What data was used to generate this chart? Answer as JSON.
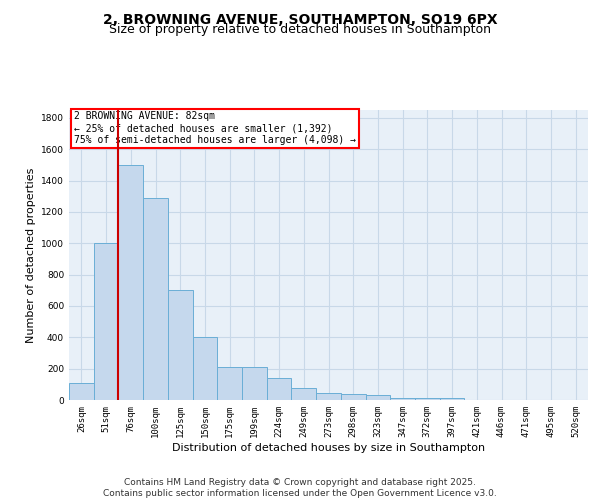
{
  "title": "2, BROWNING AVENUE, SOUTHAMPTON, SO19 6PX",
  "subtitle": "Size of property relative to detached houses in Southampton",
  "xlabel": "Distribution of detached houses by size in Southampton",
  "ylabel": "Number of detached properties",
  "categories": [
    "26sqm",
    "51sqm",
    "76sqm",
    "100sqm",
    "125sqm",
    "150sqm",
    "175sqm",
    "199sqm",
    "224sqm",
    "249sqm",
    "273sqm",
    "298sqm",
    "323sqm",
    "347sqm",
    "372sqm",
    "397sqm",
    "421sqm",
    "446sqm",
    "471sqm",
    "495sqm",
    "520sqm"
  ],
  "values": [
    110,
    1000,
    1500,
    1290,
    700,
    400,
    210,
    210,
    140,
    75,
    45,
    40,
    30,
    15,
    10,
    15,
    0,
    0,
    0,
    0,
    0
  ],
  "bar_color": "#c5d8ed",
  "bar_edge_color": "#6aaed6",
  "property_line_x": 1.5,
  "property_label": "2 BROWNING AVENUE: 82sqm",
  "annotation_line1": "← 25% of detached houses are smaller (1,392)",
  "annotation_line2": "75% of semi-detached houses are larger (4,098) →",
  "annotation_box_color": "white",
  "annotation_box_edge_color": "red",
  "red_line_color": "#cc0000",
  "ylim": [
    0,
    1850
  ],
  "yticks": [
    0,
    200,
    400,
    600,
    800,
    1000,
    1200,
    1400,
    1600,
    1800
  ],
  "grid_color": "#c8d8e8",
  "background_color": "#e8f0f8",
  "footer_line1": "Contains HM Land Registry data © Crown copyright and database right 2025.",
  "footer_line2": "Contains public sector information licensed under the Open Government Licence v3.0.",
  "title_fontsize": 10,
  "subtitle_fontsize": 9,
  "axis_label_fontsize": 8,
  "tick_fontsize": 6.5,
  "annotation_fontsize": 7,
  "footer_fontsize": 6.5
}
